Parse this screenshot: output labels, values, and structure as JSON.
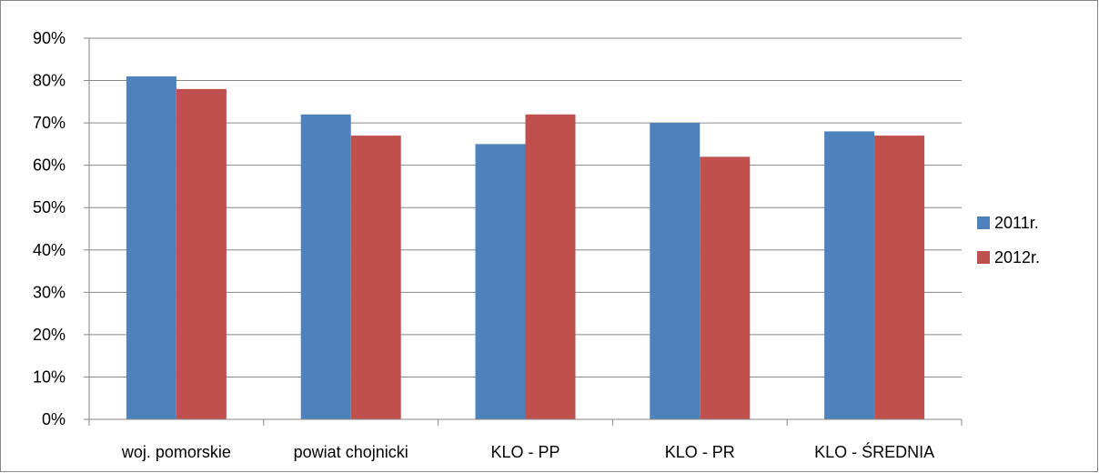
{
  "chart_data": {
    "type": "bar",
    "categories": [
      "woj. pomorskie",
      "powiat chojnicki",
      "KLO - PP",
      "KLO - PR",
      "KLO - ŚREDNIA"
    ],
    "series": [
      {
        "name": "2011r.",
        "color": "#4F81BD",
        "values": [
          81,
          72,
          65,
          70,
          68
        ]
      },
      {
        "name": "2012r.",
        "color": "#C0504D",
        "values": [
          78,
          67,
          72,
          62,
          67
        ]
      }
    ],
    "y_unit": "%",
    "ylim": [
      0,
      90
    ],
    "y_ticks": [
      0,
      10,
      20,
      30,
      40,
      50,
      60,
      70,
      80,
      90
    ],
    "grid": true,
    "legend_position": "right"
  }
}
